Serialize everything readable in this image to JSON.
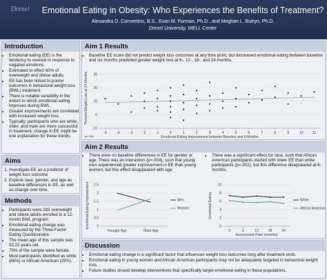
{
  "header": {
    "logo": "Drexel",
    "title": "Emotional Eating in Obesity: Who Experiences the Benefits of Treatment?",
    "authors": "Alexandra D. Convertino, B.S., Evan M. Forman, Ph.D., and Meghan L. Butryn, Ph.D.",
    "affiliation": "Drexel University, WELL Center"
  },
  "introduction": {
    "heading": "Introduction",
    "items": [
      "Emotional eating (EE) is the tendency to overeat in response to negative emotions.",
      "Estimated to effect 60% of overweight and obese adults.",
      "EE has been linked to poorer outcomes in behavioral weight loss (BWL) treatment.",
      "There is notable variability in the extent to which emotional eating improves during BWL.",
      "Greater improvements are correlated with increased weight loss.",
      "Typically, participants who are white, older, and male are more successful in treatment; change in EE might be one explanation for these trends."
    ]
  },
  "aims": {
    "heading": "Aims",
    "items": [
      "Investigate EE as a predictor of weight loss outcome",
      "Explore race, gender, and age as baseline differences in EE, as well as change over time."
    ]
  },
  "methods": {
    "heading": "Methods",
    "items": [
      "Participants were 283 overweight and obese adults enrolled in a 12-month BWL program",
      "Emotional eating change was measured by the Three-Factor Eating Questionnaire.",
      "The mean age of this sample was 53.22 years old.",
      "79% of the sample were female.",
      "Most participants identified as white (66%) or African American (29%)."
    ]
  },
  "aim1": {
    "heading": "Aim 1 Results",
    "items": [
      "Baseline EE score did not predict weight loss outcomes at any time point, but decreased emotional eating between baseline and six months predicted greater weight loss at 6-, 12-, 18-, and 24-months."
    ],
    "note": "*p<.001"
  },
  "aim2": {
    "heading": "Aim 2 Results",
    "left": [
      "There were no baseline differences in EE for gender or age. There was an interaction (p=.004), such that young men experienced greater improvement in EE than young women, but this effect disappeared with age."
    ],
    "right": [
      "There was a significant effect for race, such that African American participants started with lower EE than white participants (p=.001), but this difference disappeared at 6-months."
    ]
  },
  "discussion": {
    "heading": "Discussion",
    "items": [
      "Emotional eating change is a significant factor that influences weight loss outcomes long after treatment ends.",
      "Emotional eating in young women and African American participants may not be adequately targeted in behavioral weight loss.",
      "Future studies should develop interventions that specifically target emotional eating in these populations."
    ]
  },
  "chart_data": [
    {
      "type": "scatter",
      "x_label": "Emotional Eating Improvement between Baseline and 6-Months",
      "y_label": "Percent Weight Loss at 24-Months",
      "color": "#222222",
      "trend_color": "#999999",
      "x": [
        -5,
        -4,
        -3,
        -3,
        -2,
        -2,
        -2,
        -1,
        -1,
        -1,
        -1,
        0,
        0,
        0,
        0,
        0,
        0,
        1,
        1,
        1,
        1,
        1,
        2,
        2,
        2,
        2,
        3,
        3,
        3,
        3,
        4,
        4,
        4,
        5,
        5,
        5,
        6,
        6,
        7,
        7,
        8,
        8,
        9,
        9,
        10,
        11
      ],
      "y": [
        12,
        8,
        14,
        2,
        10,
        5,
        16,
        12,
        6,
        3,
        18,
        20,
        14,
        10,
        6,
        2,
        -2,
        22,
        15,
        9,
        4,
        -4,
        18,
        12,
        7,
        1,
        24,
        14,
        8,
        3,
        16,
        10,
        5,
        20,
        12,
        6,
        15,
        9,
        18,
        11,
        13,
        21,
        16,
        8,
        14,
        17
      ],
      "trendline": {
        "x": [
          -5,
          11
        ],
        "y": [
          9,
          13
        ]
      },
      "xlim": [
        -5.5,
        11.5
      ],
      "xticks": [
        -5,
        -4,
        -3,
        -2,
        -1,
        0,
        1,
        2,
        3,
        4,
        5,
        6,
        7,
        8,
        9,
        10,
        11
      ],
      "ylim": [
        -10,
        35
      ],
      "yticks": [
        -10,
        0,
        10,
        20,
        30
      ]
    },
    {
      "type": "line",
      "y_label": "Emotional Eating Improvement",
      "categories": [
        "Younger Age",
        "Older Age"
      ],
      "series": [
        {
          "name": "Men",
          "color": "#222222",
          "values": [
            2.0,
            1.45
          ]
        },
        {
          "name": "Women",
          "color": "#4aa58e",
          "values": [
            0.95,
            1.65
          ]
        }
      ],
      "ylim": [
        0,
        2.5
      ],
      "yticks": [
        0,
        0.5,
        1,
        1.5,
        2,
        2.5
      ]
    },
    {
      "type": "line",
      "x_label": "Assessment Point (months)",
      "y_label": "Emotional Eating",
      "x": [
        0,
        6,
        12,
        18,
        24
      ],
      "series": [
        {
          "name": "White",
          "color": "#222222",
          "values": [
            7.4,
            7.0,
            7.3,
            7.0,
            7.0
          ]
        },
        {
          "name": "African American",
          "color": "#4aa58e",
          "values": [
            6.2,
            5.8,
            5.7,
            5.9,
            5.5
          ]
        }
      ],
      "xlim": [
        -3,
        27
      ],
      "xticks": [
        0,
        6,
        12,
        18,
        24
      ],
      "ylim": [
        0,
        10
      ],
      "yticks": [
        0,
        2,
        4,
        6,
        8,
        10
      ]
    }
  ]
}
